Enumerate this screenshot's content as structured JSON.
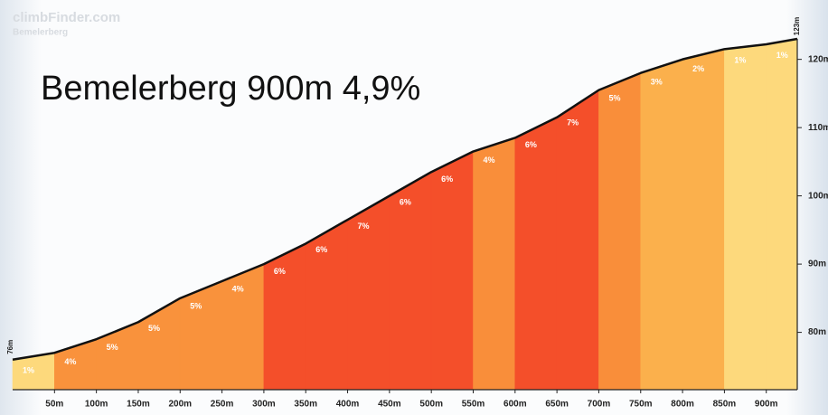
{
  "chart_data": {
    "type": "area",
    "title": "Bemelerberg 900m 4,9%",
    "watermark": "climbFinder.com",
    "watermark_subtitle": "Bemelerberg",
    "x": [
      0,
      50,
      100,
      150,
      200,
      250,
      300,
      350,
      400,
      450,
      500,
      550,
      600,
      650,
      700,
      750,
      800,
      850,
      900,
      937
    ],
    "values": [
      76,
      77,
      79,
      81.5,
      85,
      87.5,
      90,
      93,
      96.5,
      100,
      103.5,
      106.5,
      108.5,
      111.5,
      115.5,
      118,
      120,
      121.5,
      122.2,
      123
    ],
    "value_labels": [
      "76m",
      null,
      null,
      null,
      null,
      null,
      null,
      null,
      null,
      null,
      null,
      null,
      null,
      null,
      null,
      null,
      null,
      null,
      null,
      "123m"
    ],
    "line_color": "#111111",
    "gradients": [
      1,
      4,
      5,
      5,
      5,
      4,
      6,
      6,
      7,
      6,
      6,
      4,
      6,
      7,
      5,
      3,
      2,
      1,
      1
    ],
    "gradient_labels": [
      "1%",
      "4%",
      "5%",
      "5%",
      "5%",
      "4%",
      "6%",
      "6%",
      "7%",
      "6%",
      "6%",
      "4%",
      "6%",
      "7%",
      "5%",
      "3%",
      "2%",
      "1%",
      "1%"
    ],
    "segment_colors": [
      "#fdd97c",
      "#f9923c",
      "#f9923c",
      "#f9923c",
      "#f9923c",
      "#f9923c",
      "#f44f2a",
      "#f44f2a",
      "#f44f2a",
      "#f44f2a",
      "#f44f2a",
      "#f98e3a",
      "#f44f2a",
      "#f44f2a",
      "#f98e3a",
      "#fbb04c",
      "#fbb04c",
      "#fdd97c",
      "#fdd97c"
    ],
    "xlim": [
      0,
      937
    ],
    "xticks": [
      {
        "value": 50,
        "label": "50m"
      },
      {
        "value": 100,
        "label": "100m"
      },
      {
        "value": 150,
        "label": "150m"
      },
      {
        "value": 200,
        "label": "200m"
      },
      {
        "value": 250,
        "label": "250m"
      },
      {
        "value": 300,
        "label": "300m"
      },
      {
        "value": 350,
        "label": "350m"
      },
      {
        "value": 400,
        "label": "400m"
      },
      {
        "value": 450,
        "label": "450m"
      },
      {
        "value": 500,
        "label": "500m"
      },
      {
        "value": 550,
        "label": "550m"
      },
      {
        "value": 600,
        "label": "600m"
      },
      {
        "value": 650,
        "label": "650m"
      },
      {
        "value": 700,
        "label": "700m"
      },
      {
        "value": 750,
        "label": "750m"
      },
      {
        "value": 800,
        "label": "800m"
      },
      {
        "value": 850,
        "label": "850m"
      },
      {
        "value": 900,
        "label": "900m"
      }
    ],
    "ylim": [
      71.6,
      123
    ],
    "yticks": [
      {
        "value": 80,
        "label": "80m"
      },
      {
        "value": 90,
        "label": "90m"
      },
      {
        "value": 100,
        "label": "100m"
      },
      {
        "value": 110,
        "label": "110m"
      },
      {
        "value": 120,
        "label": "120m"
      }
    ],
    "grid": false
  }
}
